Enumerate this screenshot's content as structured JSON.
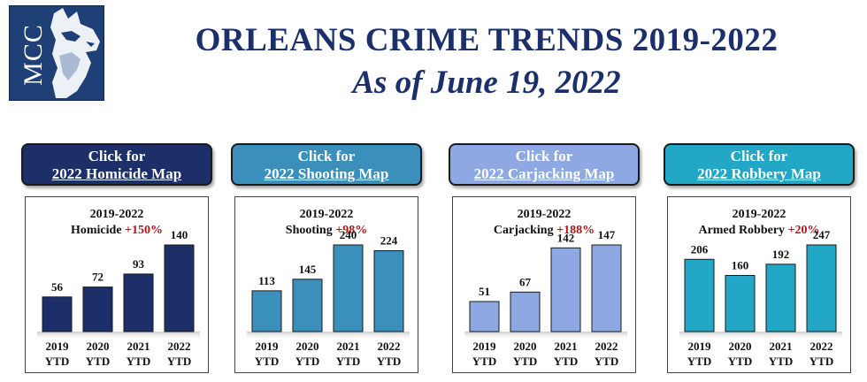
{
  "header": {
    "logo_text": "MCC",
    "title": "ORLEANS CRIME TRENDS 2019-2022",
    "subtitle": "As of June 19, 2022"
  },
  "colors": {
    "navy": "#1b2f6b",
    "homicide": "#1c2f68",
    "shooting": "#3b8fbb",
    "carjacking": "#8da8e3",
    "robbery": "#22a7c7",
    "increase": "#b0161b"
  },
  "panels": [
    {
      "id": "homicide",
      "button_line1": "Click for",
      "button_line2": "2022 Homicide Map",
      "range_label": "2019-2022",
      "crime_label": "Homicide",
      "change": "+150%"
    },
    {
      "id": "shooting",
      "button_line1": "Click for",
      "button_line2": "2022 Shooting Map",
      "range_label": "2019-2022",
      "crime_label": "Shooting",
      "change": "+98%"
    },
    {
      "id": "carjacking",
      "button_line1": "Click for",
      "button_line2": "2022 Carjacking Map",
      "range_label": "2019-2022",
      "crime_label": "Carjacking",
      "change": "+188%"
    },
    {
      "id": "robbery",
      "button_line1": "Click for",
      "button_line2": "2022 Robbery Map",
      "range_label": "2019-2022",
      "crime_label": "Armed Robbery",
      "change": "+20%"
    }
  ],
  "chart_data": [
    {
      "type": "bar",
      "title": "Homicide",
      "categories": [
        "2019 YTD",
        "2020 YTD",
        "2021 YTD",
        "2022 YTD"
      ],
      "values": [
        56,
        72,
        93,
        140
      ]
    },
    {
      "type": "bar",
      "title": "Shooting",
      "categories": [
        "2019 YTD",
        "2020 YTD",
        "2021 YTD",
        "2022 YTD"
      ],
      "values": [
        113,
        145,
        240,
        224
      ]
    },
    {
      "type": "bar",
      "title": "Carjacking",
      "categories": [
        "2019 YTD",
        "2020 YTD",
        "2021 YTD",
        "2022 YTD"
      ],
      "values": [
        51,
        67,
        142,
        147
      ]
    },
    {
      "type": "bar",
      "title": "Armed Robbery",
      "categories": [
        "2019 YTD",
        "2020 YTD",
        "2021 YTD",
        "2022 YTD"
      ],
      "values": [
        206,
        160,
        192,
        247
      ]
    }
  ]
}
